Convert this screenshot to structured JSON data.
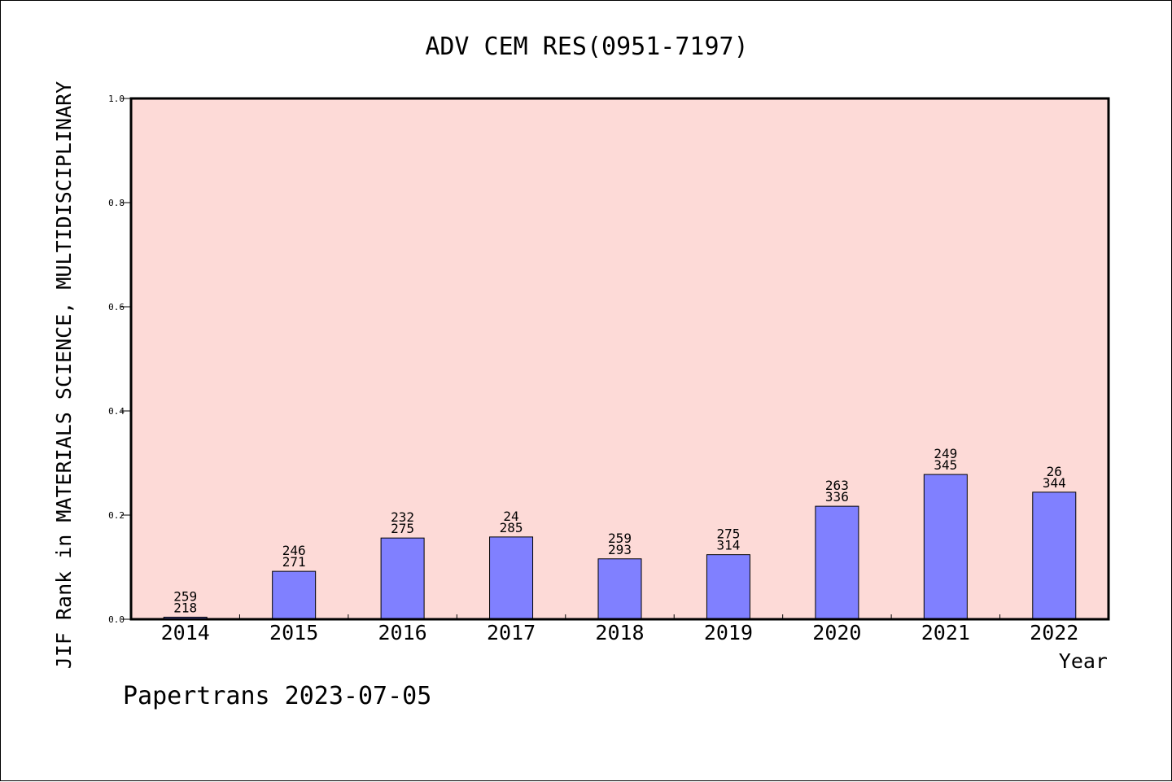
{
  "chart_data": {
    "type": "bar",
    "title": "ADV CEM RES(0951-7197)",
    "xlabel": "Year",
    "ylabel": "JIF Rank in MATERIALS SCIENCE, MULTIDISCIPLINARY",
    "footer": "Papertrans 2023-07-05",
    "categories": [
      "2014",
      "2015",
      "2016",
      "2017",
      "2018",
      "2019",
      "2020",
      "2021",
      "2022"
    ],
    "values": [
      0.004,
      0.092,
      0.156,
      0.158,
      0.116,
      0.124,
      0.217,
      0.278,
      0.244
    ],
    "label_top": [
      "259",
      "246",
      "232",
      "24",
      "259",
      "275",
      "263",
      "249",
      "26"
    ],
    "label_bottom": [
      "218",
      "271",
      "275",
      "285",
      "293",
      "314",
      "336",
      "345",
      "344"
    ],
    "yticks": [
      "0.0",
      "0.2",
      "0.4",
      "0.6",
      "0.8",
      "1.0"
    ],
    "ytick_values": [
      0,
      0.2,
      0.4,
      0.6,
      0.8,
      1.0
    ],
    "ylim": [
      0,
      1.0
    ],
    "grid": false,
    "colors": {
      "plot_background": "#fddad7",
      "bar_fill": "#8080ff",
      "bar_stroke": "#000000"
    }
  }
}
